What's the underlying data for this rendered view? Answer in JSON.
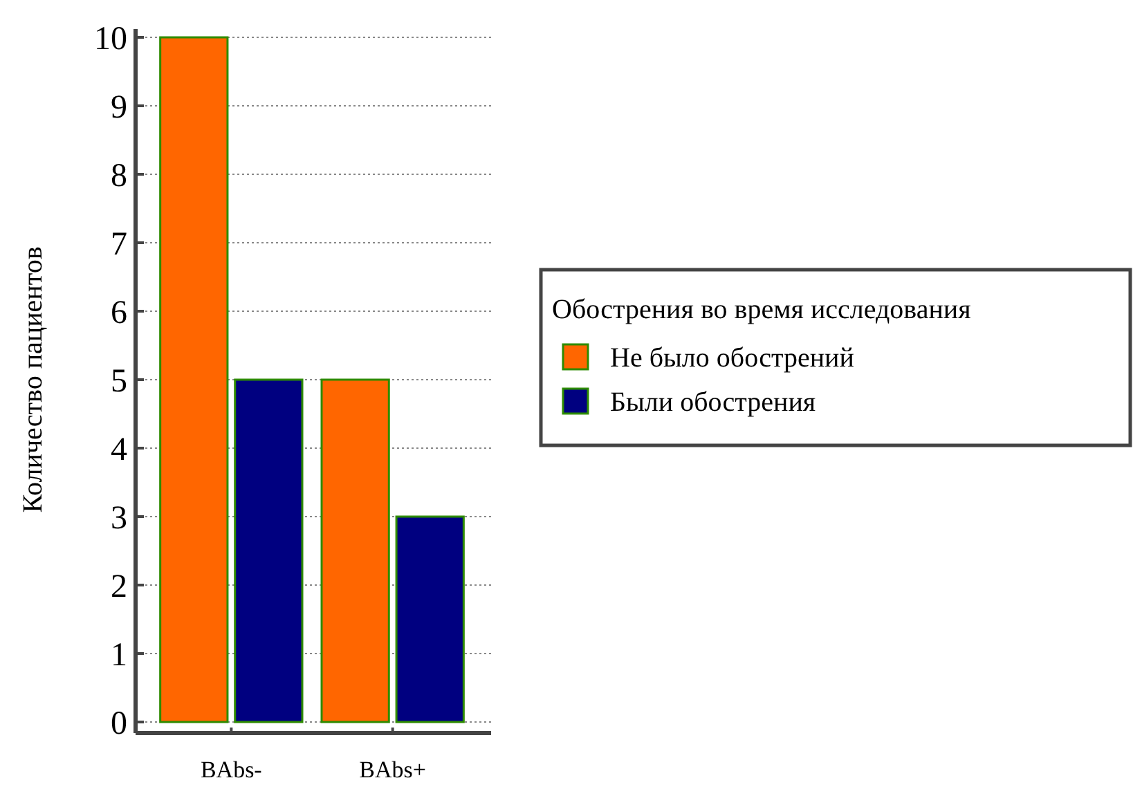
{
  "chart_data": {
    "type": "bar",
    "ylabel": "Количество пациентов",
    "legend_title": "Обострения во время исследования",
    "categories": [
      "BAbs-",
      "BAbs+"
    ],
    "series": [
      {
        "name": "Не было обострений",
        "color": "#ff6600",
        "values": [
          10,
          5
        ]
      },
      {
        "name": "Были обострения",
        "color": "#000080",
        "values": [
          5,
          3
        ]
      }
    ],
    "ylim": [
      0,
      10
    ],
    "yticks": [
      0,
      1,
      2,
      3,
      4,
      5,
      6,
      7,
      8,
      9,
      10
    ],
    "grid": "y",
    "legend": "right"
  }
}
